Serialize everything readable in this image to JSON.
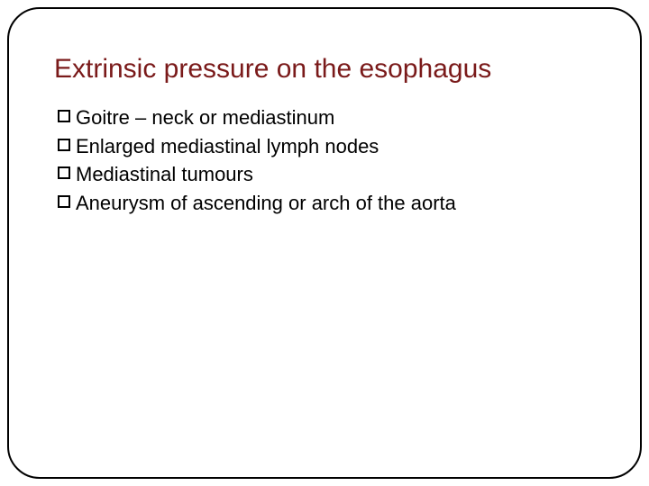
{
  "slide": {
    "title": "Extrinsic pressure on the esophagus",
    "title_color": "#7a1a1a",
    "title_fontsize": 30,
    "body_fontsize": 22,
    "body_color": "#000000",
    "border_color": "#000000",
    "border_radius": 36,
    "background_color": "#ffffff",
    "bullet_marker": {
      "type": "hollow-square",
      "size": 14,
      "border_color": "#000000",
      "border_width": 2
    },
    "bullets": [
      {
        "text": "Goitre – neck or mediastinum"
      },
      {
        "text": "Enlarged mediastinal lymph nodes"
      },
      {
        "text": "Mediastinal tumours"
      },
      {
        "text": "Aneurysm of ascending or arch of the aorta"
      }
    ]
  }
}
